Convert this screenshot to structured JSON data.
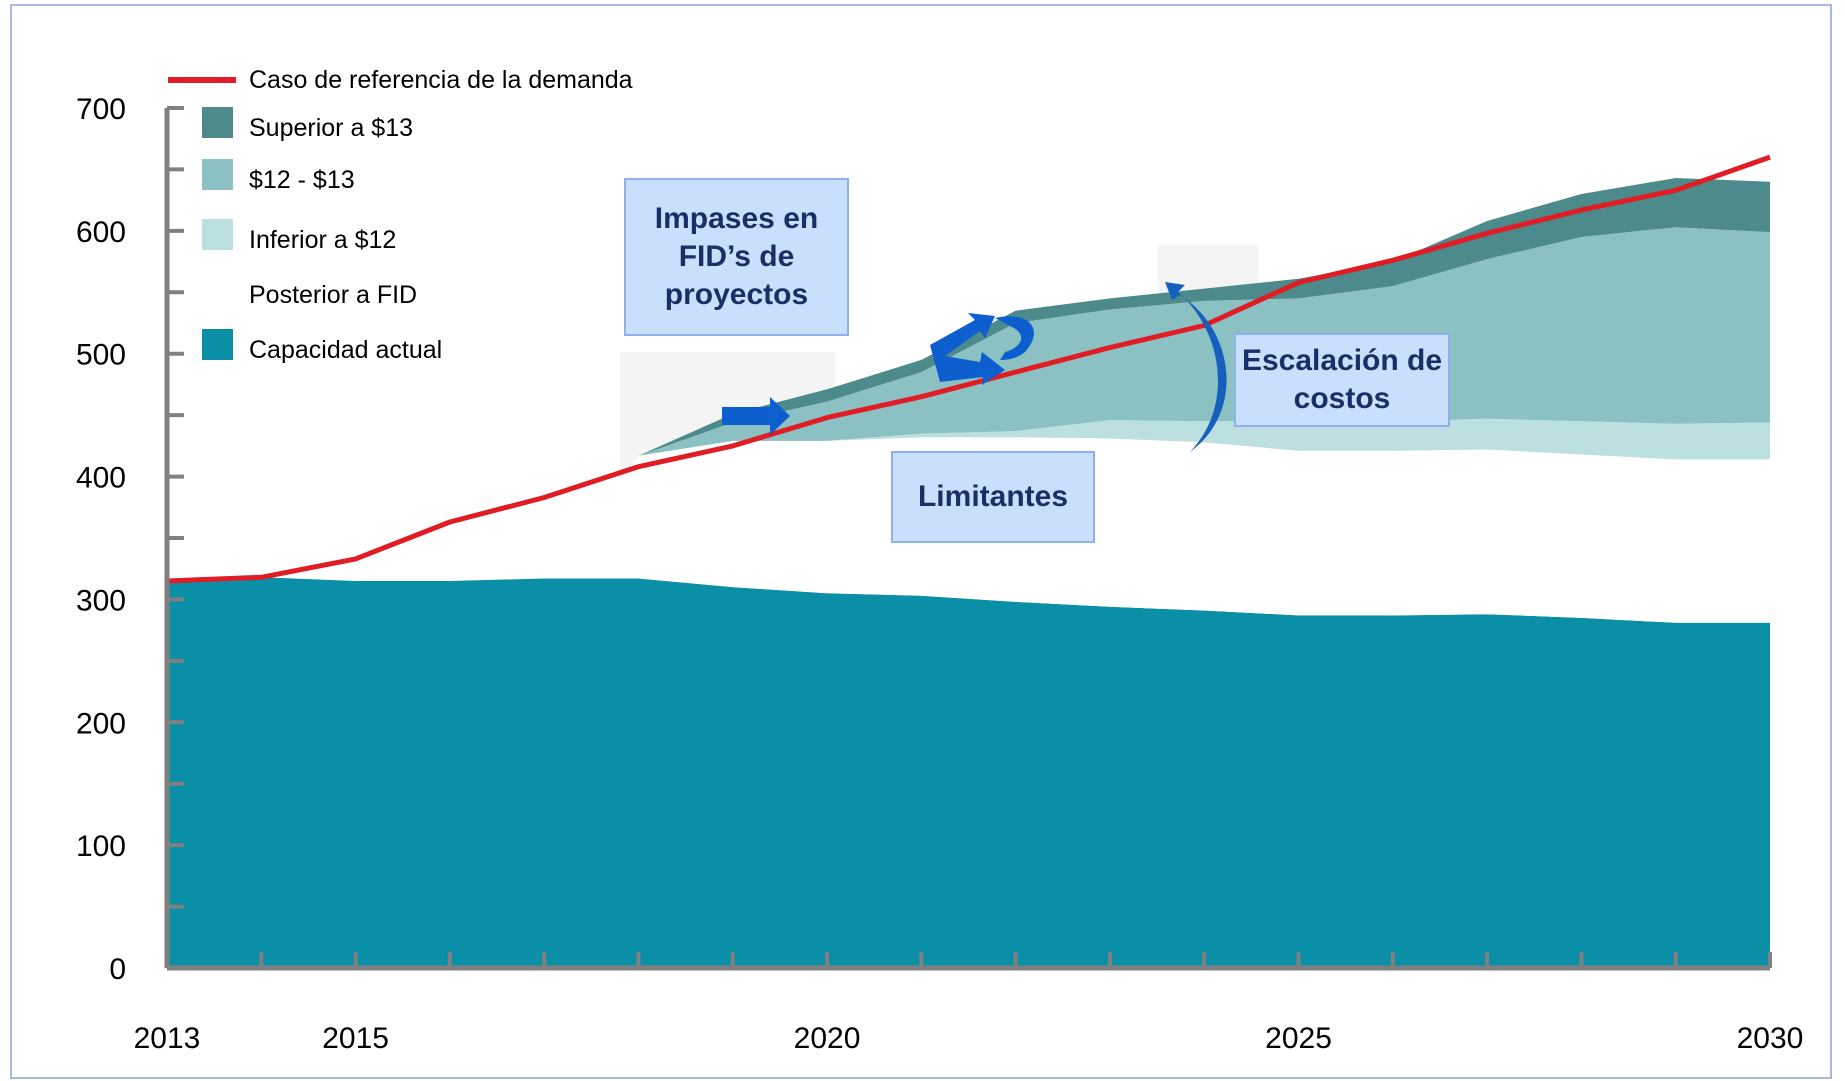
{
  "chart_data": {
    "type": "area",
    "title": "",
    "xlabel": "",
    "ylabel": "",
    "ylim": [
      0,
      700
    ],
    "xlim": [
      2013,
      2030
    ],
    "x_ticks": [
      "2013",
      "2015",
      "2020",
      "2025",
      "2030"
    ],
    "y_ticks": [
      "0",
      "100",
      "200",
      "300",
      "400",
      "500",
      "600",
      "700"
    ],
    "grid": false,
    "legend_position": "top-left",
    "x": [
      2013,
      2014,
      2015,
      2016,
      2017,
      2018,
      2019,
      2020,
      2021,
      2022,
      2023,
      2024,
      2025,
      2026,
      2027,
      2028,
      2029,
      2030
    ],
    "series": [
      {
        "name": "Capacidad actual",
        "color": "#0b8fa6",
        "values": [
          315,
          318,
          315,
          315,
          317,
          317,
          310,
          305,
          303,
          298,
          294,
          291,
          287,
          287,
          288,
          285,
          281,
          281
        ]
      },
      {
        "name": "Posterior a FID",
        "color": "#ffffff",
        "values": [
          0,
          0,
          0,
          0,
          0,
          100,
          119,
          124,
          129,
          134,
          137,
          137,
          134,
          134,
          134,
          133,
          133,
          133
        ]
      },
      {
        "name": "Inferior a $12",
        "color": "#bcdfe0",
        "values": [
          0,
          0,
          0,
          0,
          0,
          0,
          0,
          0,
          3,
          5,
          15,
          17,
          24,
          24,
          25,
          27,
          29,
          30
        ]
      },
      {
        "name": "$12 - $13",
        "color": "#8cc1c3",
        "values": [
          0,
          0,
          0,
          0,
          0,
          0,
          15,
          32,
          50,
          88,
          90,
          98,
          100,
          110,
          130,
          150,
          160,
          155
        ]
      },
      {
        "name": "Superior a $13",
        "color": "#4d8a8b",
        "values": [
          0,
          0,
          0,
          0,
          0,
          0,
          7,
          10,
          10,
          10,
          9,
          10,
          16,
          20,
          31,
          35,
          40,
          41
        ]
      }
    ],
    "line_series": {
      "name": "Caso de referencia de la demanda",
      "color": "#e01c24",
      "values": [
        315,
        318,
        333,
        363,
        383,
        408,
        425,
        448,
        465,
        485,
        505,
        523,
        558,
        576,
        598,
        617,
        633,
        660
      ]
    },
    "annotations": {
      "impases": "Impases en FID’s de proyectos",
      "escalacion": "Escalación de costos",
      "limitantes": "Limitantes"
    }
  },
  "legend": [
    {
      "label": "Caso de referencia de la demanda",
      "kind": "line",
      "color": "#e01c24"
    },
    {
      "label": "Superior a $13",
      "kind": "box",
      "color": "#4d8a8b"
    },
    {
      "label": "$12 - $13",
      "kind": "box",
      "color": "#8cc1c3"
    },
    {
      "label": "Inferior a $12",
      "kind": "box",
      "color": "#bcdfe0"
    },
    {
      "label": "Posterior a FID",
      "kind": "none",
      "color": "#ffffff"
    },
    {
      "label": "Capacidad actual",
      "kind": "box",
      "color": "#0b8fa6"
    }
  ]
}
